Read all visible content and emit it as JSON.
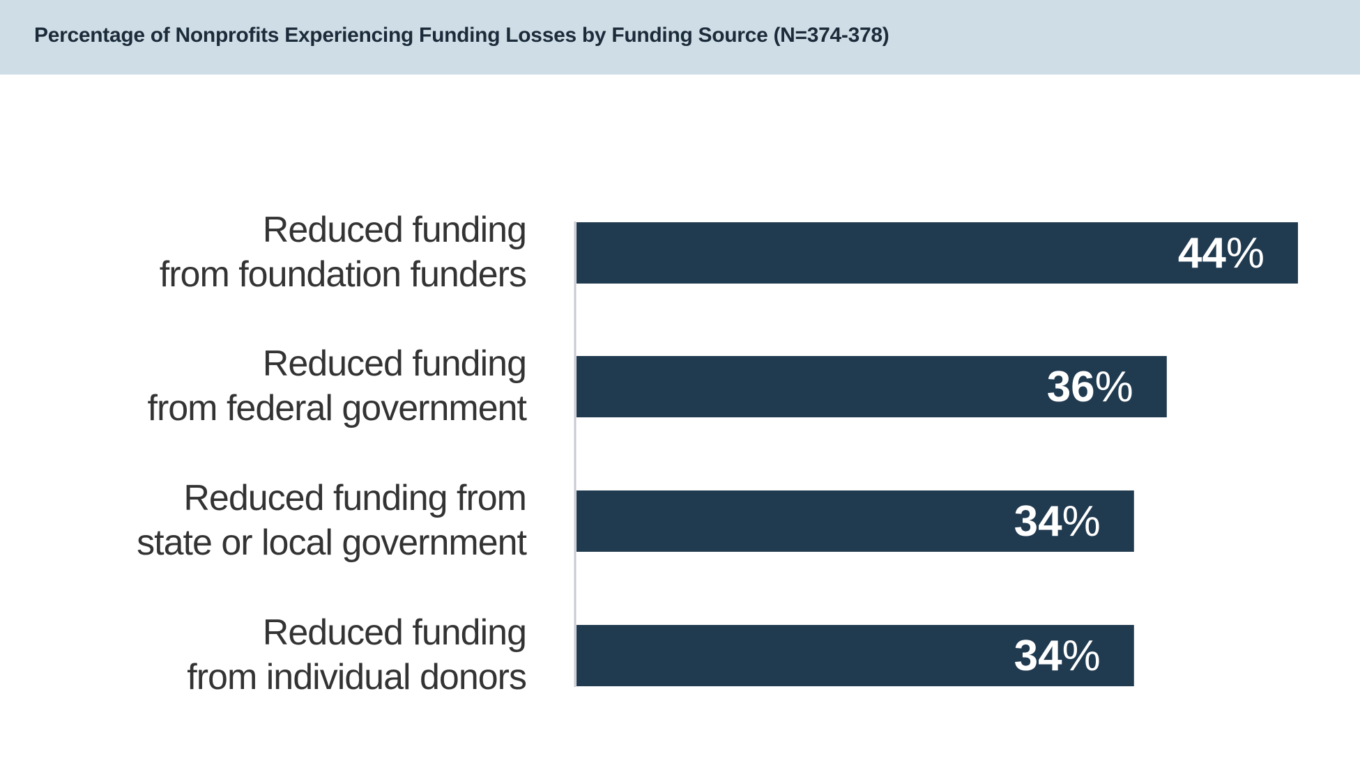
{
  "header": {
    "title": "Percentage of Nonprofits Experiencing Funding Losses by Funding Source (N=374-378)"
  },
  "colors": {
    "bar": "#203a50",
    "axis": "#c9c9d2",
    "header_bg": "#cfdde6"
  },
  "chart_data": {
    "type": "bar",
    "orientation": "horizontal",
    "title": "Percentage of Nonprofits Experiencing Funding Losses by Funding Source (N=374-378)",
    "categories": [
      [
        "Reduced funding",
        "from foundation funders"
      ],
      [
        "Reduced funding",
        "from federal government"
      ],
      [
        "Reduced funding from",
        "state or local government"
      ],
      [
        "Reduced funding",
        "from individual donors"
      ]
    ],
    "values": [
      44,
      36,
      34,
      34
    ],
    "value_labels": [
      [
        "44",
        "%"
      ],
      [
        "36",
        "%"
      ],
      [
        "34",
        "%"
      ],
      [
        "34",
        "%"
      ]
    ],
    "unit": "%",
    "xlim": [
      0,
      44
    ],
    "grid": false,
    "legend": "none"
  }
}
